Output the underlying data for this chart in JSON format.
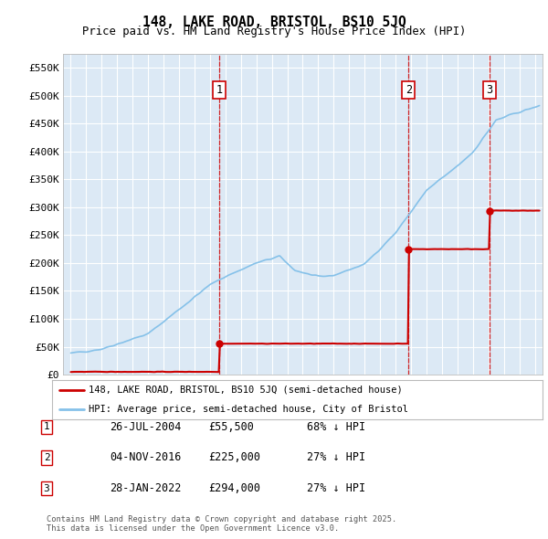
{
  "title": "148, LAKE ROAD, BRISTOL, BS10 5JQ",
  "subtitle": "Price paid vs. HM Land Registry's House Price Index (HPI)",
  "background_color": "#dce9f5",
  "plot_background": "#dce9f5",
  "red_line_label": "148, LAKE ROAD, BRISTOL, BS10 5JQ (semi-detached house)",
  "blue_line_label": "HPI: Average price, semi-detached house, City of Bristol",
  "transactions": [
    {
      "label": "1",
      "date": "26-JUL-2004",
      "price": 55500,
      "pct": "68% ↓ HPI",
      "x_year": 2004.58
    },
    {
      "label": "2",
      "date": "04-NOV-2016",
      "price": 225000,
      "pct": "27% ↓ HPI",
      "x_year": 2016.84
    },
    {
      "label": "3",
      "date": "28-JAN-2022",
      "price": 294000,
      "pct": "27% ↓ HPI",
      "x_year": 2022.08
    }
  ],
  "footer": "Contains HM Land Registry data © Crown copyright and database right 2025.\nThis data is licensed under the Open Government Licence v3.0.",
  "ylim": [
    0,
    575000
  ],
  "yticks": [
    0,
    50000,
    100000,
    150000,
    200000,
    250000,
    300000,
    350000,
    400000,
    450000,
    500000,
    550000
  ],
  "xlim": [
    1994.5,
    2025.5
  ],
  "xticks": [
    1995,
    1996,
    1997,
    1998,
    1999,
    2000,
    2001,
    2002,
    2003,
    2004,
    2005,
    2006,
    2007,
    2008,
    2009,
    2010,
    2011,
    2012,
    2013,
    2014,
    2015,
    2016,
    2017,
    2018,
    2019,
    2020,
    2021,
    2022,
    2023,
    2024,
    2025
  ]
}
